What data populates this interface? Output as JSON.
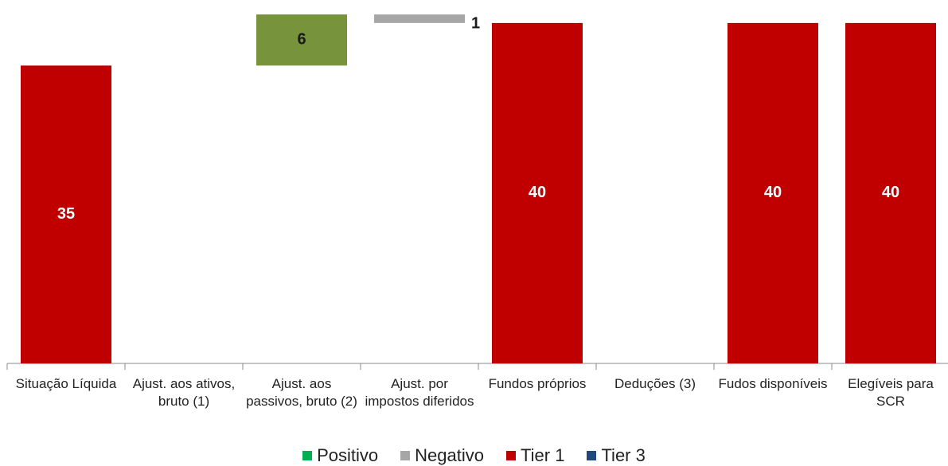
{
  "chart_data": {
    "type": "waterfall",
    "categories": [
      "Situação Líquida",
      "Ajust. aos ativos, bruto (1)",
      "Ajust. aos passivos, bruto (2)",
      "Ajust. por impostos diferidos",
      "Fundos próprios",
      "Deduções (3)",
      "Fudos disponíveis",
      "Elegíveis para SCR"
    ],
    "series": [
      {
        "name": "Positivo",
        "role": "increase",
        "color": "#77933c",
        "legend_color": "#00b050",
        "label_color": "#1a1a1a",
        "values": [
          null,
          null,
          6,
          null,
          null,
          null,
          null,
          null
        ]
      },
      {
        "name": "Negativo",
        "role": "decrease",
        "color": "#a6a6a6",
        "legend_color": "#a6a6a6",
        "label_color": "#1a1a1a",
        "values": [
          null,
          null,
          null,
          1,
          null,
          null,
          null,
          null
        ]
      },
      {
        "name": "Tier 1",
        "role": "total",
        "color": "#c00000",
        "legend_color": "#c00000",
        "label_color": "#ffffff",
        "values": [
          35,
          null,
          null,
          null,
          40,
          null,
          40,
          40
        ]
      },
      {
        "name": "Tier 3",
        "role": "total",
        "color": "#1f497d",
        "legend_color": "#1f497d",
        "label_color": "#ffffff",
        "values": [
          null,
          null,
          null,
          null,
          null,
          null,
          null,
          null
        ]
      }
    ],
    "ylim": [
      0,
      42.7
    ]
  }
}
